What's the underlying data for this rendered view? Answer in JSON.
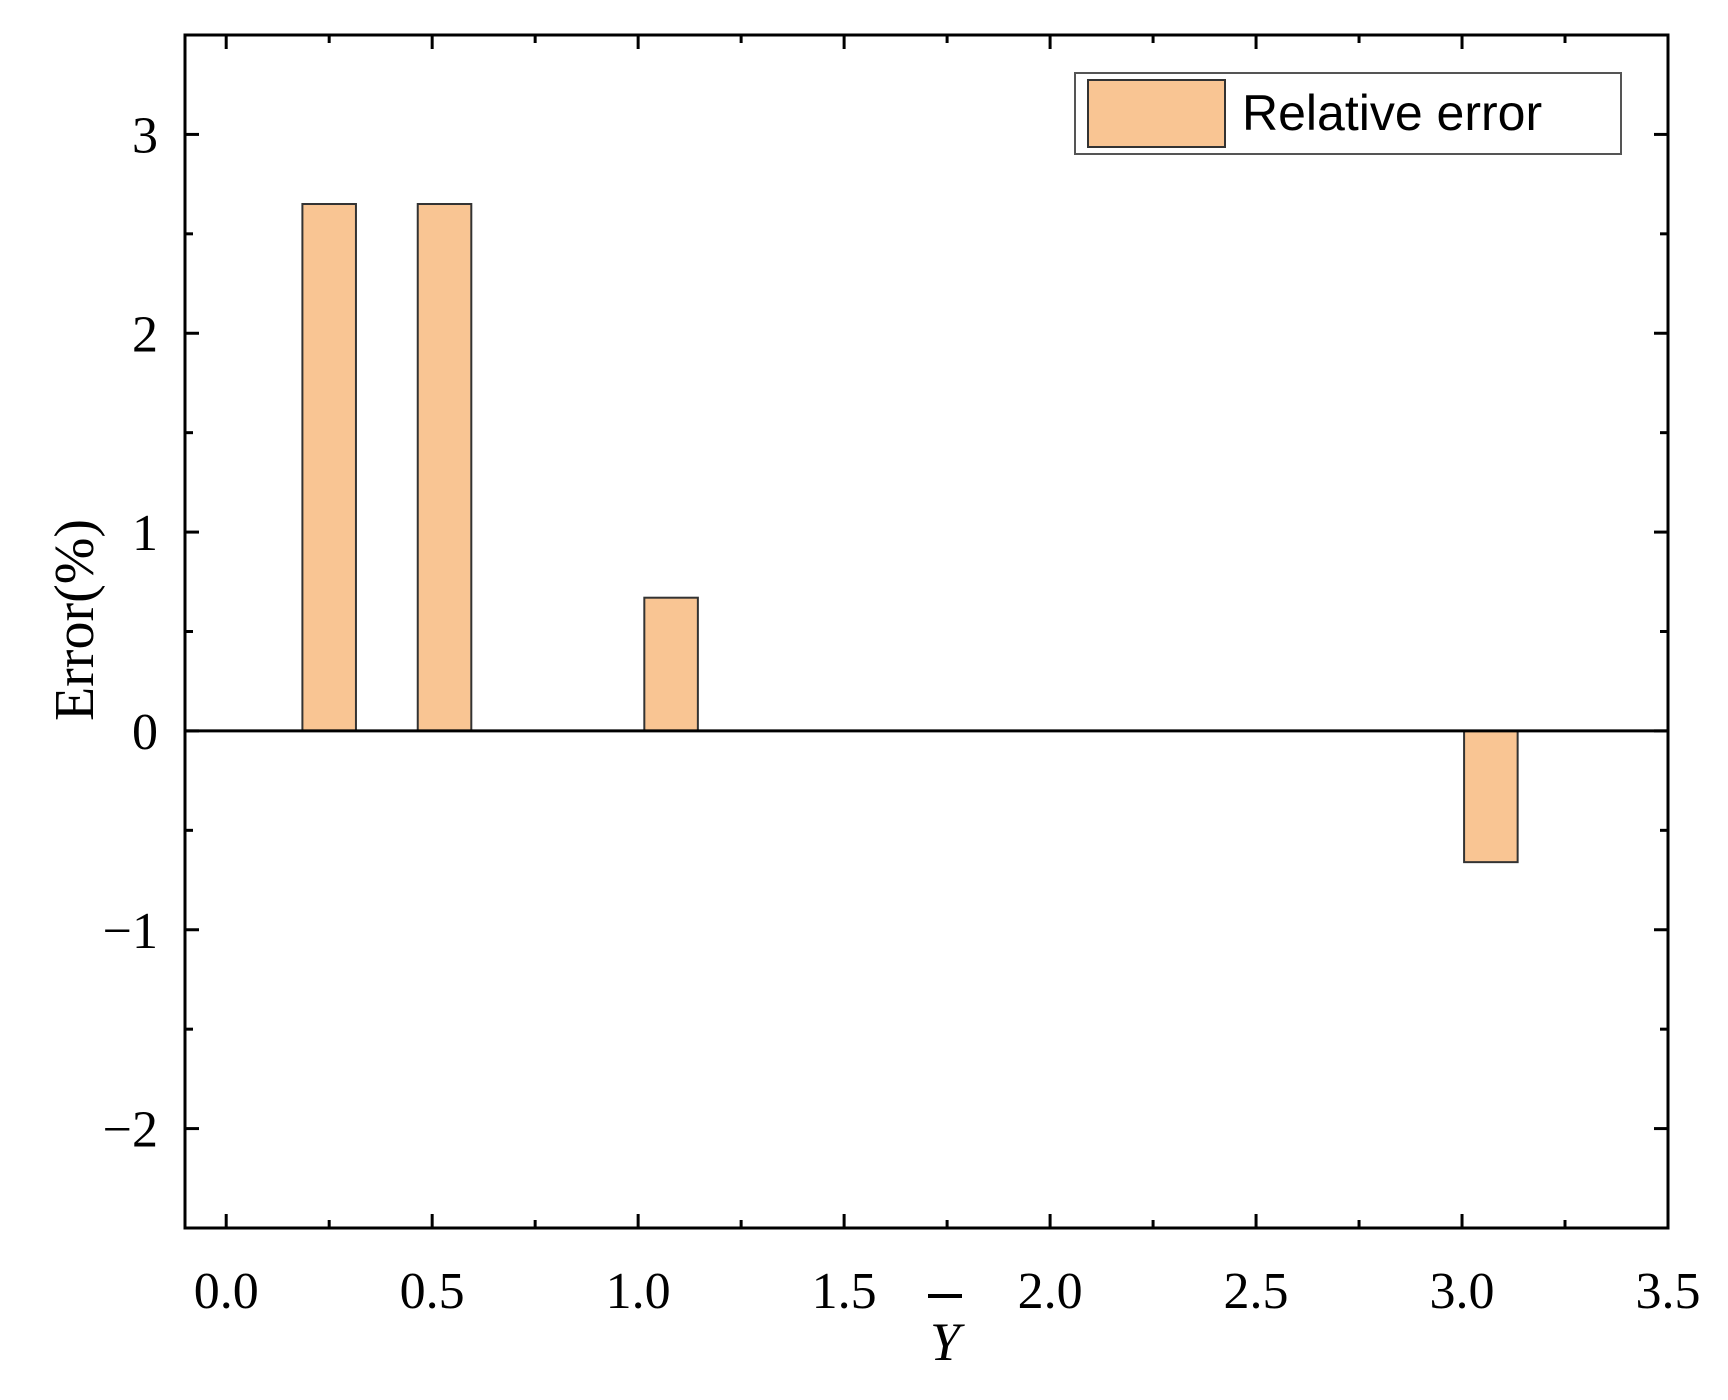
{
  "chart_data": {
    "type": "bar",
    "x": [
      0.25,
      0.53,
      1.08,
      3.07
    ],
    "values": [
      2.65,
      2.65,
      0.67,
      -0.66
    ],
    "bar_width": 0.13,
    "xlabel": "Y",
    "ylabel": "Error(%)",
    "xlim": [
      -0.1,
      3.5
    ],
    "ylim": [
      -2.5,
      3.5
    ],
    "xticks": [
      0.0,
      0.5,
      1.0,
      1.5,
      2.0,
      2.5,
      3.0,
      3.5
    ],
    "xtick_labels": [
      "0.0",
      "0.5",
      "1.0",
      "1.5",
      "2.0",
      "2.5",
      "3.0",
      "3.5"
    ],
    "yticks": [
      -2,
      -1,
      0,
      1,
      2,
      3
    ],
    "ytick_labels": [
      "−2",
      "−1",
      "0",
      "1",
      "2",
      "3"
    ],
    "series": [
      {
        "name": "Relative error",
        "color": "#F9C593"
      }
    ],
    "legend": {
      "position": "top-right",
      "label": "Relative error"
    },
    "grid": false,
    "zero_line": true
  }
}
